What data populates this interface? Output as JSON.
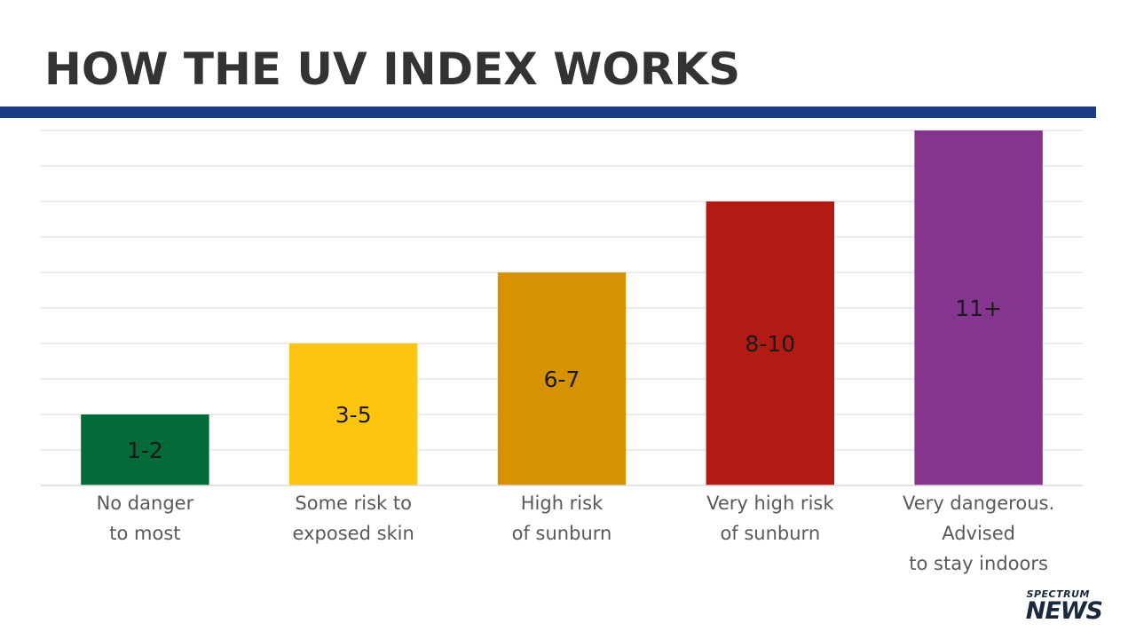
{
  "header": {
    "title": "HOW THE UV INDEX WORKS"
  },
  "colors": {
    "rule": "#1b3c84",
    "grid": "#d9d9d9",
    "axis": "#d9d9d9"
  },
  "logo": {
    "top": "SPECTRUM",
    "bottom": "NEWS"
  },
  "chart_data": {
    "type": "bar",
    "title": "HOW THE UV INDEX WORKS",
    "xlabel": "",
    "ylabel": "",
    "grid": true,
    "ylim": [
      0,
      10
    ],
    "categories": [
      [
        "No danger",
        "to most"
      ],
      [
        "Some risk to",
        "exposed skin"
      ],
      [
        "High risk",
        "of sunburn"
      ],
      [
        "Very high risk",
        "of sunburn"
      ],
      [
        "Very dangerous.",
        "Advised",
        "to stay indoors"
      ]
    ],
    "values": [
      2,
      4,
      6,
      8,
      10
    ],
    "bar_labels": [
      "1-2",
      "3-5",
      "6-7",
      "8-10",
      "11+"
    ],
    "bar_colors": [
      "#046a38",
      "#fdc50f",
      "#d69200",
      "#b11b13",
      "#84368f"
    ]
  }
}
